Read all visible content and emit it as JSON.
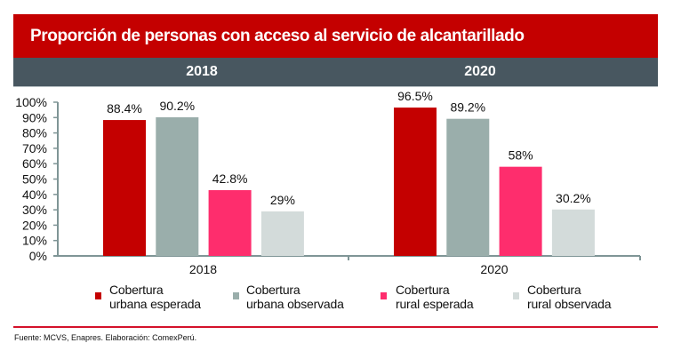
{
  "title": "Proporción de personas con acceso al servicio de alcantarillado",
  "year_headers": [
    "2018",
    "2020"
  ],
  "chart_data": {
    "type": "bar",
    "title": "Proporción de personas con acceso al servicio de alcantarillado",
    "categories": [
      "2018",
      "2020"
    ],
    "series": [
      {
        "name": "Cobertura urbana esperada",
        "color": "#c40000",
        "values": [
          88.4,
          96.5
        ],
        "labels": [
          "88.4%",
          "96.5%"
        ]
      },
      {
        "name": "Cobertura urbana observada",
        "color": "#9aaeab",
        "values": [
          90.2,
          89.2
        ],
        "labels": [
          "90.2%",
          "89.2%"
        ]
      },
      {
        "name": "Cobertura rural esperada",
        "color": "#fe2d6d",
        "values": [
          42.8,
          58
        ],
        "labels": [
          "42.8%",
          "58%"
        ]
      },
      {
        "name": "Cobertura rural observada",
        "color": "#d3dbda",
        "values": [
          29,
          30.2
        ],
        "labels": [
          "29%",
          "30.2%"
        ]
      }
    ],
    "ylim": [
      0,
      100
    ],
    "yticks": [
      "0%",
      "10%",
      "20%",
      "30%",
      "40%",
      "50%",
      "60%",
      "70%",
      "80%",
      "90%",
      "100%"
    ],
    "xlabel": "",
    "ylabel": "",
    "grid": false,
    "legend_position": "bottom"
  },
  "legend": [
    {
      "line1": "Cobertura",
      "line2": "urbana esperada",
      "color": "#c40000"
    },
    {
      "line1": "Cobertura",
      "line2": "urbana observada",
      "color": "#9aaeab"
    },
    {
      "line1": "Cobertura",
      "line2": "rural esperada",
      "color": "#fe2d6d"
    },
    {
      "line1": "Cobertura",
      "line2": "rural observada",
      "color": "#d3dbda"
    }
  ],
  "source": "Fuente: MCVS, Enapres. Elaboración: ComexPerú."
}
